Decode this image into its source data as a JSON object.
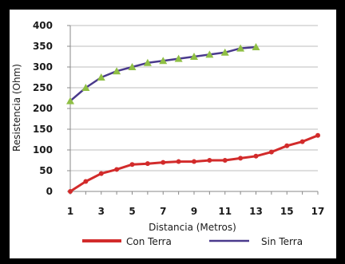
{
  "chart_data": {
    "type": "line",
    "title": "",
    "xlabel": "Distancia (Metros)",
    "ylabel": "Resistencia (Ohm)",
    "xlim": [
      1,
      17
    ],
    "ylim": [
      0,
      400
    ],
    "x_ticks": [
      "1",
      "3",
      "5",
      "7",
      "9",
      "11",
      "13",
      "15",
      "17"
    ],
    "y_ticks": [
      "0",
      "50",
      "100",
      "150",
      "200",
      "250",
      "300",
      "350",
      "400"
    ],
    "grid": true,
    "legend_position": "bottom",
    "series": [
      {
        "name": "Con Terra",
        "color": "#d22b2b",
        "x": [
          1,
          2,
          3,
          4,
          5,
          6,
          7,
          8,
          9,
          10,
          11,
          12,
          13,
          14,
          15,
          16,
          17
        ],
        "values": [
          0,
          24,
          43,
          53,
          65,
          67,
          70,
          72,
          72,
          75,
          75,
          80,
          85,
          95,
          110,
          120,
          135
        ]
      },
      {
        "name": "Sin Terra",
        "color": "#4a3a8c",
        "marker_color": "#8fbf45",
        "x": [
          1,
          2,
          3,
          4,
          5,
          6,
          7,
          8,
          9,
          10,
          11,
          12,
          13
        ],
        "values": [
          218,
          250,
          275,
          290,
          300,
          310,
          315,
          320,
          325,
          330,
          335,
          345,
          348
        ]
      }
    ]
  }
}
